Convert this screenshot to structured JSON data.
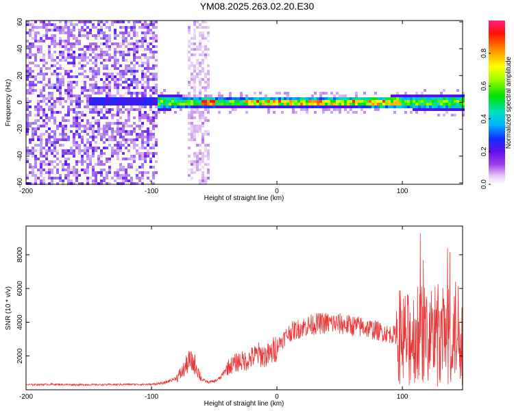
{
  "title": "YM08.2025.263.02.20.E30",
  "chart_data": [
    {
      "type": "heatmap",
      "xlabel": "Height of straight line (km)",
      "ylabel": "Frequency (Hz)",
      "xlim": [
        -200,
        148
      ],
      "ylim": [
        -61,
        61
      ],
      "xticks": [
        "-200",
        "-100",
        "0",
        "100"
      ],
      "xtick_values": [
        -200,
        -100,
        0,
        100
      ],
      "yticks": [
        "60",
        "40",
        "20",
        "0",
        "-20",
        "-40",
        "-60"
      ],
      "ytick_values": [
        60,
        40,
        20,
        0,
        -20,
        -40,
        -60
      ],
      "colorbar": {
        "label": "Normalized spectral amplitude",
        "range": [
          0,
          1
        ],
        "ticks": [
          "0.0",
          "0.2",
          "0.4",
          "0.6",
          "0.8"
        ],
        "tick_values": [
          0.0,
          0.2,
          0.4,
          0.6,
          0.8
        ]
      },
      "features": [
        {
          "name": "broadband noise",
          "x_range": [
            -200,
            -95
          ],
          "freq_halfwidth_hz": 61,
          "amplitude": 0.15
        },
        {
          "name": "noise band",
          "x_range": [
            -70,
            -55
          ],
          "freq_halfwidth_hz": 61,
          "amplitude": 0.05
        },
        {
          "name": "signal band",
          "x_range": [
            -95,
            148
          ],
          "center_hz": 0,
          "freq_halfwidth_hz": 5,
          "peak_amplitude": 1.0
        }
      ]
    },
    {
      "type": "line",
      "xlabel": "Height of straight line (km)",
      "ylabel": "SNR (10 * v/v)",
      "xlim": [
        -200,
        148
      ],
      "ylim": [
        0,
        9700
      ],
      "xticks": [
        "-200",
        "-100",
        "0",
        "100"
      ],
      "xtick_values": [
        -200,
        -100,
        0,
        100
      ],
      "yticks": [
        "2000",
        "4000",
        "6000",
        "8000"
      ],
      "ytick_values": [
        2000,
        4000,
        6000,
        8000
      ],
      "color": "#ee3333",
      "series": [
        {
          "name": "SNR",
          "x": [
            -200,
            -180,
            -160,
            -140,
            -120,
            -100,
            -90,
            -80,
            -75,
            -70,
            -65,
            -60,
            -55,
            -50,
            -45,
            -40,
            -35,
            -30,
            -25,
            -20,
            -15,
            -10,
            -5,
            0,
            10,
            20,
            30,
            40,
            50,
            60,
            70,
            80,
            90,
            100,
            105,
            110,
            115,
            120,
            125,
            130,
            135,
            140,
            145,
            148
          ],
          "y": [
            300,
            320,
            300,
            300,
            320,
            320,
            400,
            700,
            1100,
            1700,
            1500,
            600,
            450,
            500,
            700,
            1300,
            1500,
            1700,
            1700,
            1900,
            2100,
            2000,
            2100,
            2600,
            3400,
            3700,
            3900,
            3950,
            3900,
            3800,
            3700,
            3500,
            3300,
            3200,
            3000,
            3300,
            3500,
            3300,
            3400,
            3300,
            3200,
            3400,
            3500,
            3600
          ]
        }
      ]
    }
  ]
}
